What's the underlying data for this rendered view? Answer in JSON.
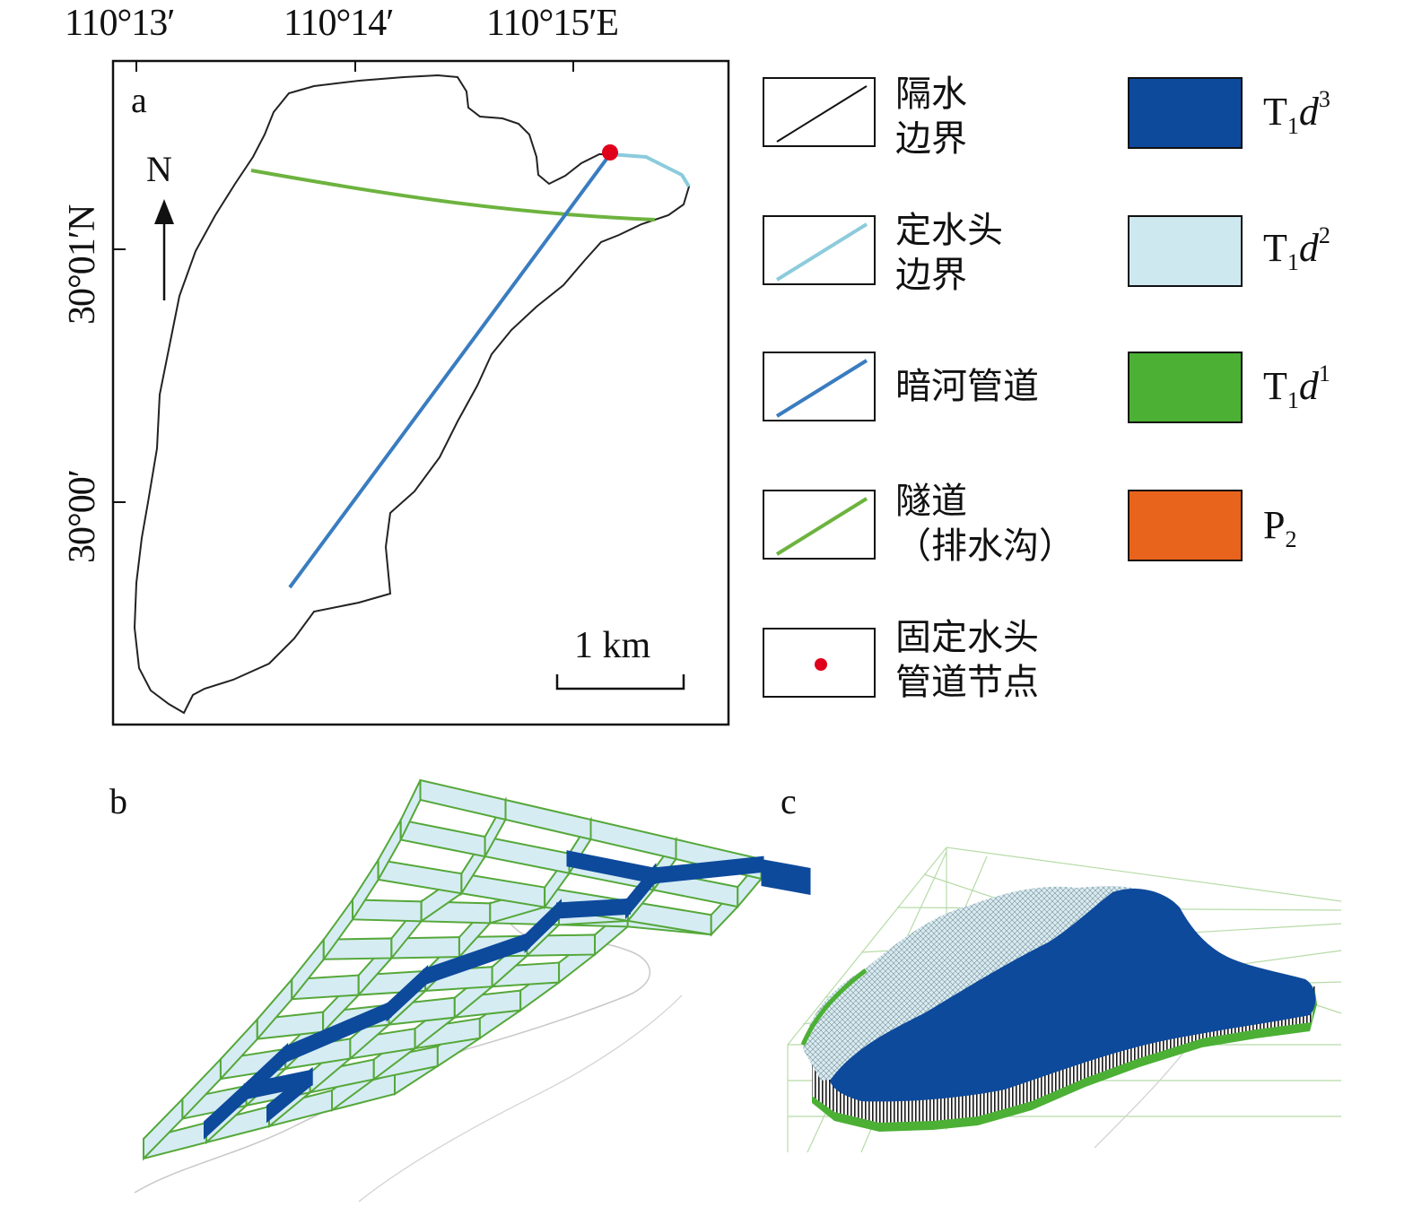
{
  "panel_a": {
    "letter": "a",
    "top_ticks": [
      "110°13′",
      "110°14′",
      "110°15′E"
    ],
    "left_ticks": [
      "30°01′N",
      "30°00′"
    ],
    "north": "N",
    "scale": "1 km"
  },
  "legend_left": [
    {
      "label_lines": [
        "隔水",
        "边界"
      ],
      "icon": "black-line-icon",
      "color": "#111111"
    },
    {
      "label_lines": [
        "定水头",
        "边界"
      ],
      "icon": "light-blue-line-icon",
      "color": "#8ccbdc"
    },
    {
      "label_lines": [
        "暗河管道"
      ],
      "icon": "blue-line-icon",
      "color": "#3a7cc0"
    },
    {
      "label_lines": [
        "隧道",
        "（排水沟）"
      ],
      "icon": "green-line-icon",
      "color": "#6db33f"
    },
    {
      "label_lines": [
        "固定水头",
        "管道节点"
      ],
      "icon": "red-dot-icon",
      "color": "#e0001b"
    }
  ],
  "legend_right": [
    {
      "sym": "T",
      "sub": "1",
      "it": "d",
      "sup": "3",
      "color": "#0d4a9c"
    },
    {
      "sym": "T",
      "sub": "1",
      "it": "d",
      "sup": "2",
      "color": "#cde8ef"
    },
    {
      "sym": "T",
      "sub": "1",
      "it": "d",
      "sup": "1",
      "color": "#4cb035"
    },
    {
      "sym": "P",
      "sub": "2",
      "it": "",
      "sup": "",
      "color": "#e8641c"
    }
  ],
  "panel_b": {
    "letter": "b"
  },
  "panel_c": {
    "letter": "c"
  }
}
